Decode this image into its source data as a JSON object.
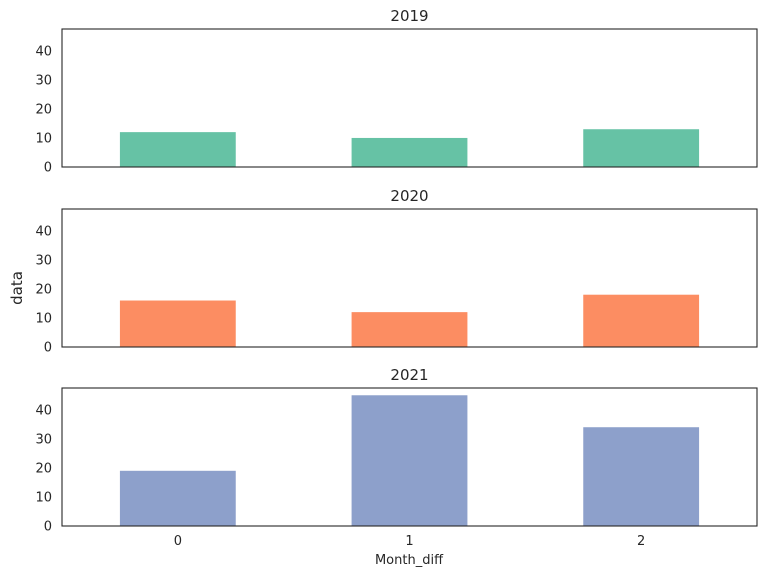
{
  "chart_data": {
    "type": "bar",
    "layout": "stacked-subplots",
    "ylabel": "data",
    "xlabel": "Month_diff",
    "categories": [
      "0",
      "1",
      "2"
    ],
    "ylim": [
      0,
      47.5
    ],
    "yticks": [
      0,
      10,
      20,
      30,
      40
    ],
    "sharex": true,
    "grid": false,
    "panels": [
      {
        "title": "2019",
        "color": "#66c2a5",
        "values": [
          12,
          10,
          13
        ]
      },
      {
        "title": "2020",
        "color": "#fc8d62",
        "values": [
          16,
          12,
          18
        ]
      },
      {
        "title": "2021",
        "color": "#8da0cb",
        "values": [
          19,
          45,
          34
        ]
      }
    ]
  }
}
